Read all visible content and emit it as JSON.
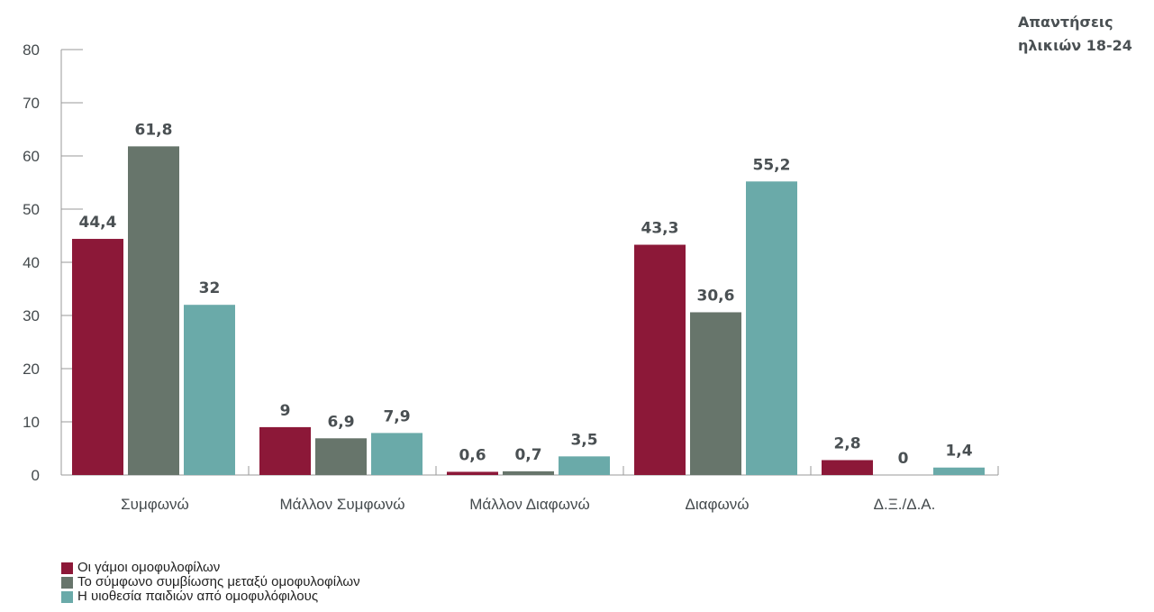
{
  "corner_title": "Απαντήσεις\nηλικιών 18-24",
  "chart_data": {
    "type": "bar",
    "title": "",
    "xlabel": "",
    "ylabel": "",
    "ylim": [
      0,
      80
    ],
    "yticks": [
      0,
      10,
      20,
      30,
      40,
      50,
      60,
      70,
      80
    ],
    "grid": false,
    "legend_position": "bottom-left",
    "categories": [
      "Συμφωνώ",
      "Μάλλον Συμφωνώ",
      "Μάλλον Διαφωνώ",
      "Διαφωνώ",
      "Δ.Ξ./Δ.Α."
    ],
    "series": [
      {
        "name": "Οι γάμοι ομοφυλοφίλων",
        "color": "#8c1838",
        "values": [
          44.4,
          9,
          0.6,
          43.3,
          2.8
        ],
        "labels": [
          "44,4",
          "9",
          "0,6",
          "43,3",
          "2,8"
        ]
      },
      {
        "name": "Το σύμφωνο συμβίωσης μεταξύ ομοφυλοφίλων",
        "color": "#67756b",
        "values": [
          61.8,
          6.9,
          0.7,
          30.6,
          0
        ],
        "labels": [
          "61,8",
          "6,9",
          "0,7",
          "30,6",
          "0"
        ]
      },
      {
        "name": "Η υιοθεσία παιδιών από ομοφυλόφιλους",
        "color": "#6aaaa9",
        "values": [
          32,
          7.9,
          3.5,
          55.2,
          1.4
        ],
        "labels": [
          "32",
          "7,9",
          "3,5",
          "55,2",
          "1,4"
        ]
      }
    ]
  }
}
